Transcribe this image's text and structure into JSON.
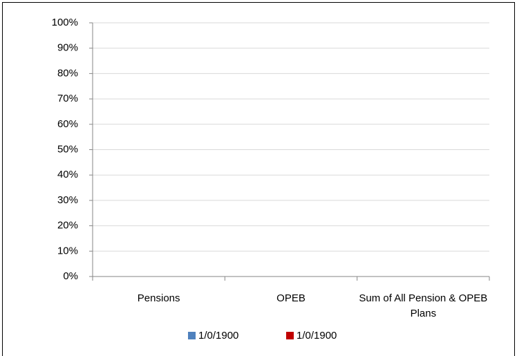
{
  "chart_data": {
    "type": "bar",
    "categories": [
      "Pensions",
      "OPEB",
      "Sum of All Pension & OPEB Plans"
    ],
    "series": [
      {
        "name": "1/0/1900",
        "color": "#4f81bd",
        "values": [
          0,
          0,
          0
        ]
      },
      {
        "name": "1/0/1900",
        "color": "#c00000",
        "values": [
          0,
          0,
          0
        ]
      }
    ],
    "ylim": [
      0,
      100
    ],
    "yticks": [
      {
        "value": 0,
        "label": "0%"
      },
      {
        "value": 10,
        "label": "10%"
      },
      {
        "value": 20,
        "label": "20%"
      },
      {
        "value": 30,
        "label": "30%"
      },
      {
        "value": 40,
        "label": "40%"
      },
      {
        "value": 50,
        "label": "50%"
      },
      {
        "value": 60,
        "label": "60%"
      },
      {
        "value": 70,
        "label": "70%"
      },
      {
        "value": 80,
        "label": "80%"
      },
      {
        "value": 90,
        "label": "90%"
      },
      {
        "value": 100,
        "label": "100%"
      }
    ],
    "grid": true,
    "legend": "bottom"
  }
}
